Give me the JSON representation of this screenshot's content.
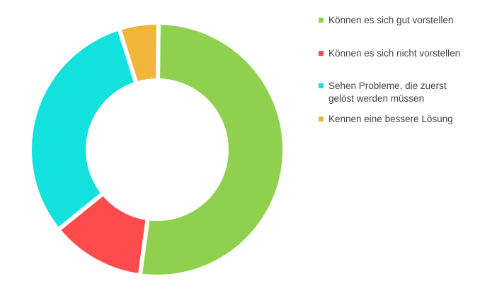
{
  "chart_data": {
    "type": "pie",
    "variant": "donut",
    "title": "",
    "legend_position": "right",
    "slices": [
      {
        "label": "Können es sich gut vorstellen",
        "value": 52,
        "color": "#8fd14f"
      },
      {
        "label": "Können es sich nicht vorstellen",
        "value": 12,
        "color": "#ff4b4b"
      },
      {
        "label": "Sehen Probleme, die zuerst gelöst werden müssen",
        "value": 31,
        "color": "#12e1de"
      },
      {
        "label": "Kennen eine bessere Lösung",
        "value": 5,
        "color": "#f0b53a"
      }
    ]
  }
}
